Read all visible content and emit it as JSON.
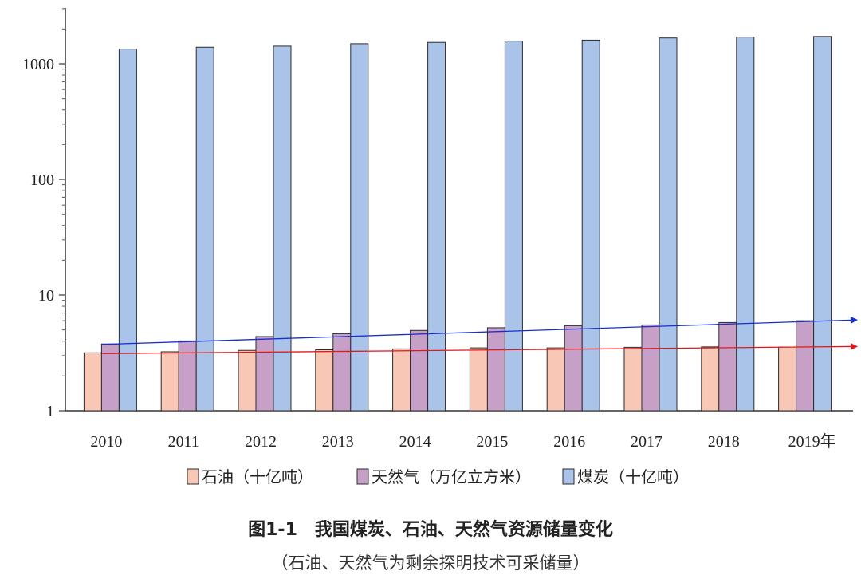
{
  "chart_data": {
    "type": "bar",
    "y_scale": "log",
    "ylim": [
      1,
      3000
    ],
    "yticks": [
      {
        "value": 1,
        "label": "1"
      },
      {
        "value": 10,
        "label": "10"
      },
      {
        "value": 100,
        "label": "100"
      },
      {
        "value": 1000,
        "label": "1000"
      }
    ],
    "categories": [
      "2010",
      "2011",
      "2012",
      "2013",
      "2014",
      "2015",
      "2016",
      "2017",
      "2018",
      "2019年"
    ],
    "series": [
      {
        "name": "石油（十亿吨）",
        "color": "#f8c7b6",
        "values": [
          3.17,
          3.24,
          3.33,
          3.37,
          3.43,
          3.5,
          3.5,
          3.54,
          3.57,
          3.56
        ]
      },
      {
        "name": "天然气（万亿立方米）",
        "color": "#c7a0c7",
        "values": [
          3.78,
          4.02,
          4.38,
          4.64,
          4.95,
          5.22,
          5.44,
          5.52,
          5.79,
          6.0
        ]
      },
      {
        "name": "煤炭（十亿吨）",
        "color": "#a9c4e8",
        "values": [
          1340,
          1390,
          1420,
          1490,
          1530,
          1570,
          1600,
          1670,
          1700,
          1720
        ]
      }
    ],
    "trend_lines": [
      {
        "series": "天然气（万亿立方米）",
        "color": "#1a2ecc",
        "start": 3.75,
        "end": 6.1
      },
      {
        "series": "石油（十亿吨）",
        "color": "#e01a1a",
        "start": 3.12,
        "end": 3.6
      }
    ],
    "grid": false,
    "legend_position": "bottom",
    "title": "图1-1　我国煤炭、石油、天然气资源储量变化",
    "subtitle": "（石油、天然气为剩余探明技术可采储量）"
  }
}
